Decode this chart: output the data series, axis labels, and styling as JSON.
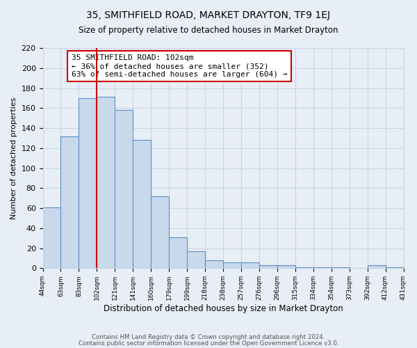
{
  "title": "35, SMITHFIELD ROAD, MARKET DRAYTON, TF9 1EJ",
  "subtitle": "Size of property relative to detached houses in Market Drayton",
  "xlabel": "Distribution of detached houses by size in Market Drayton",
  "ylabel": "Number of detached properties",
  "footer_lines": [
    "Contains HM Land Registry data © Crown copyright and database right 2024.",
    "Contains public sector information licensed under the Open Government Licence v3.0."
  ],
  "bin_labels": [
    "44sqm",
    "63sqm",
    "83sqm",
    "102sqm",
    "121sqm",
    "141sqm",
    "160sqm",
    "179sqm",
    "199sqm",
    "218sqm",
    "238sqm",
    "257sqm",
    "276sqm",
    "296sqm",
    "315sqm",
    "334sqm",
    "354sqm",
    "373sqm",
    "392sqm",
    "412sqm",
    "431sqm"
  ],
  "bar_heights": [
    61,
    132,
    170,
    171,
    158,
    128,
    72,
    31,
    17,
    8,
    6,
    6,
    3,
    3,
    1,
    1,
    1,
    0,
    3,
    1
  ],
  "bar_color": "#c9d9ec",
  "bar_edge_color": "#5b8fc7",
  "vline_x": 3,
  "vline_color": "#cc0000",
  "annotation_title": "35 SMITHFIELD ROAD: 102sqm",
  "annotation_line1": "← 36% of detached houses are smaller (352)",
  "annotation_line2": "63% of semi-detached houses are larger (604) →",
  "annotation_box_color": "#ffffff",
  "annotation_box_edge_color": "#cc0000",
  "ylim": [
    0,
    220
  ],
  "yticks": [
    0,
    20,
    40,
    60,
    80,
    100,
    120,
    140,
    160,
    180,
    200,
    220
  ],
  "grid_color": "#c8d4e8",
  "bg_color": "#e8eef6"
}
